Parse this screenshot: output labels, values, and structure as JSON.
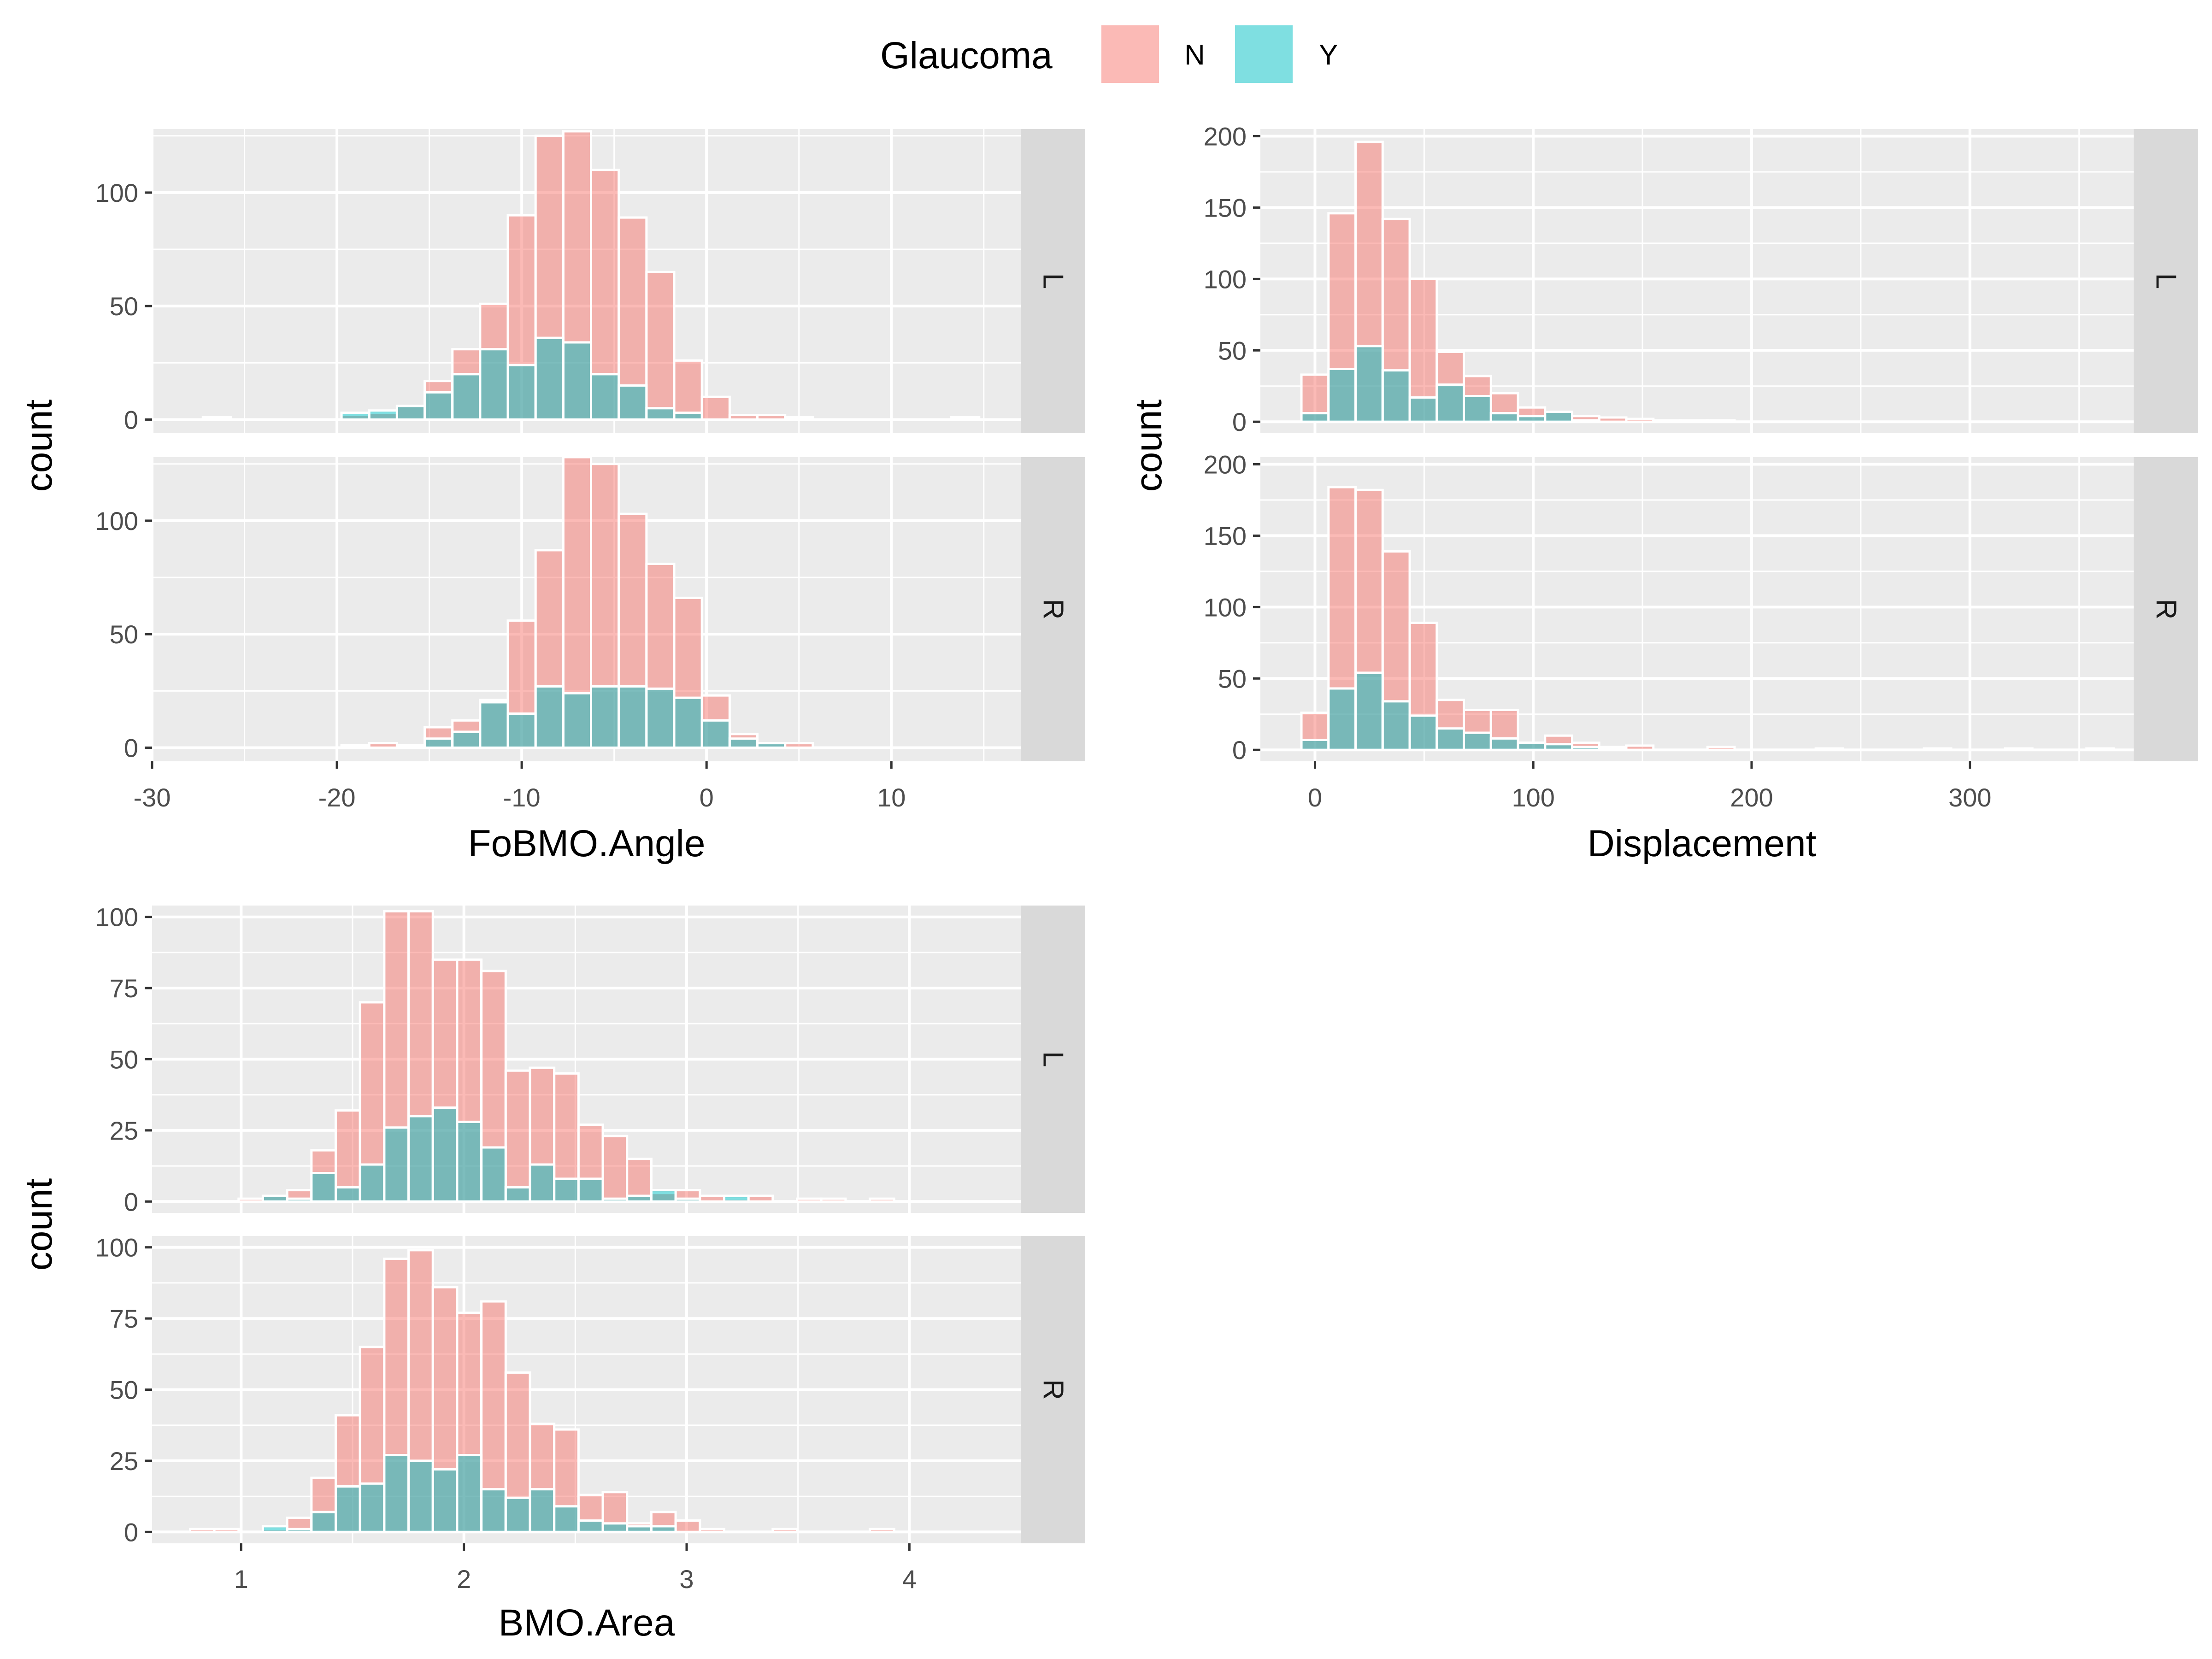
{
  "legend": {
    "title": "Glaucoma",
    "items": [
      {
        "label": "N",
        "color": "#F8766D"
      },
      {
        "label": "Y",
        "color": "#00BFC4"
      }
    ]
  },
  "chart_data": [
    {
      "type": "bar",
      "stacking": "overlay",
      "xlabel": "FoBMO.Angle",
      "ylabel": "count",
      "xlim": [
        -30,
        17
      ],
      "ylim": [
        -6,
        128
      ],
      "xticks": [
        -30,
        -20,
        -10,
        0,
        10
      ],
      "yticks": [
        0,
        50,
        100
      ],
      "grid": true,
      "facets": [
        "L",
        "R"
      ],
      "bin_centers": [
        -28,
        -26.5,
        -25,
        -23.5,
        -22,
        -20.5,
        -19,
        -17.5,
        -16,
        -14.5,
        -13,
        -11.5,
        -10,
        -8.5,
        -7,
        -5.5,
        -4,
        -2.5,
        -1,
        0.5,
        2,
        3.5,
        5,
        6.5,
        8,
        9.5,
        11,
        12.5,
        14,
        15.5
      ],
      "series": [
        {
          "name": "N",
          "facet": "L",
          "values": [
            0,
            1,
            0,
            0,
            0,
            0,
            2,
            3,
            6,
            17,
            31,
            51,
            90,
            125,
            127,
            110,
            89,
            65,
            26,
            10,
            2,
            2,
            1,
            0,
            0,
            0,
            0,
            0,
            1,
            0
          ]
        },
        {
          "name": "Y",
          "facet": "L",
          "values": [
            0,
            0,
            0,
            0,
            0,
            0,
            3,
            4,
            6,
            12,
            20,
            31,
            24,
            36,
            34,
            20,
            15,
            5,
            3,
            0,
            0,
            0,
            0,
            0,
            0,
            0,
            0,
            0,
            0,
            0
          ]
        },
        {
          "name": "N",
          "facet": "R",
          "values": [
            0,
            0,
            0,
            0,
            0,
            0,
            1,
            2,
            1,
            9,
            12,
            21,
            56,
            87,
            128,
            125,
            103,
            81,
            66,
            23,
            6,
            2,
            2,
            0,
            0,
            0,
            0,
            0,
            0,
            0
          ]
        },
        {
          "name": "Y",
          "facet": "R",
          "values": [
            0,
            0,
            0,
            0,
            0,
            0,
            0,
            0,
            0,
            4,
            7,
            20,
            15,
            27,
            24,
            27,
            27,
            26,
            22,
            12,
            4,
            2,
            0,
            0,
            0,
            0,
            0,
            0,
            0,
            0
          ]
        }
      ]
    },
    {
      "type": "bar",
      "stacking": "overlay",
      "xlabel": "Displacement",
      "ylabel": "count",
      "xlim": [
        -25,
        375
      ],
      "ylim": [
        -8,
        205
      ],
      "xticks": [
        0,
        100,
        200,
        300
      ],
      "yticks": [
        0,
        50,
        100,
        150,
        200
      ],
      "grid": true,
      "facets": [
        "L",
        "R"
      ],
      "bin_centers": [
        0,
        12.4,
        24.8,
        37.2,
        49.6,
        62,
        74.4,
        86.8,
        99.2,
        111.6,
        124,
        136.4,
        148.8,
        161.2,
        173.6,
        186,
        198.4,
        210.8,
        223.2,
        235.6,
        248,
        260.4,
        272.8,
        285.2,
        297.6,
        310,
        322.4,
        334.8,
        347.2,
        359.6
      ],
      "series": [
        {
          "name": "N",
          "facet": "L",
          "values": [
            33,
            146,
            196,
            142,
            100,
            49,
            32,
            20,
            10,
            7,
            4,
            3,
            2,
            1,
            1,
            1,
            0,
            0,
            0,
            0,
            0,
            0,
            0,
            0,
            0,
            0,
            0,
            0,
            0,
            0
          ]
        },
        {
          "name": "Y",
          "facet": "L",
          "values": [
            6,
            37,
            53,
            36,
            17,
            26,
            18,
            6,
            4,
            7,
            1,
            0,
            0,
            0,
            0,
            0,
            0,
            0,
            0,
            0,
            0,
            0,
            0,
            0,
            0,
            0,
            0,
            0,
            0,
            0
          ]
        },
        {
          "name": "N",
          "facet": "R",
          "values": [
            26,
            184,
            182,
            139,
            89,
            35,
            28,
            28,
            5,
            10,
            5,
            2,
            3,
            0,
            0,
            2,
            0,
            0,
            0,
            1,
            0,
            0,
            0,
            1,
            0,
            0,
            1,
            0,
            0,
            1
          ]
        },
        {
          "name": "Y",
          "facet": "R",
          "values": [
            7,
            43,
            54,
            34,
            24,
            15,
            12,
            8,
            5,
            4,
            2,
            1,
            0,
            0,
            0,
            0,
            0,
            0,
            0,
            0,
            0,
            0,
            0,
            0,
            0,
            0,
            0,
            0,
            0,
            0
          ]
        }
      ]
    },
    {
      "type": "bar",
      "stacking": "overlay",
      "xlabel": "BMO.Area",
      "ylabel": "count",
      "xlim": [
        0.6,
        4.5
      ],
      "ylim": [
        -4,
        104
      ],
      "xticks": [
        1,
        2,
        3,
        4
      ],
      "yticks": [
        0,
        25,
        50,
        75,
        100
      ],
      "grid": true,
      "facets": [
        "L",
        "R"
      ],
      "bin_centers": [
        0.825,
        0.934,
        1.043,
        1.152,
        1.261,
        1.37,
        1.479,
        1.588,
        1.697,
        1.806,
        1.915,
        2.024,
        2.133,
        2.242,
        2.351,
        2.46,
        2.569,
        2.678,
        2.787,
        2.896,
        3.005,
        3.114,
        3.223,
        3.332,
        3.441,
        3.55,
        3.659,
        3.768,
        3.877,
        3.986
      ],
      "series": [
        {
          "name": "N",
          "facet": "L",
          "values": [
            0,
            0,
            1,
            2,
            4,
            18,
            32,
            70,
            102,
            102,
            85,
            85,
            81,
            46,
            47,
            45,
            27,
            23,
            15,
            3,
            4,
            2,
            1,
            2,
            0,
            1,
            1,
            0,
            1,
            0
          ]
        },
        {
          "name": "Y",
          "facet": "L",
          "values": [
            0,
            0,
            0,
            2,
            1,
            10,
            5,
            13,
            26,
            30,
            33,
            28,
            19,
            5,
            13,
            8,
            8,
            1,
            2,
            4,
            1,
            0,
            2,
            0,
            0,
            0,
            0,
            0,
            0,
            0
          ]
        },
        {
          "name": "N",
          "facet": "R",
          "values": [
            1,
            1,
            0,
            1,
            5,
            19,
            41,
            65,
            96,
            99,
            86,
            77,
            81,
            56,
            38,
            36,
            13,
            14,
            3,
            7,
            4,
            1,
            0,
            0,
            1,
            0,
            0,
            0,
            1,
            0
          ]
        },
        {
          "name": "Y",
          "facet": "R",
          "values": [
            0,
            0,
            0,
            2,
            1,
            7,
            16,
            17,
            27,
            25,
            22,
            27,
            15,
            12,
            15,
            9,
            4,
            3,
            2,
            2,
            0,
            0,
            0,
            0,
            0,
            0,
            0,
            0,
            0,
            0
          ]
        }
      ]
    }
  ]
}
